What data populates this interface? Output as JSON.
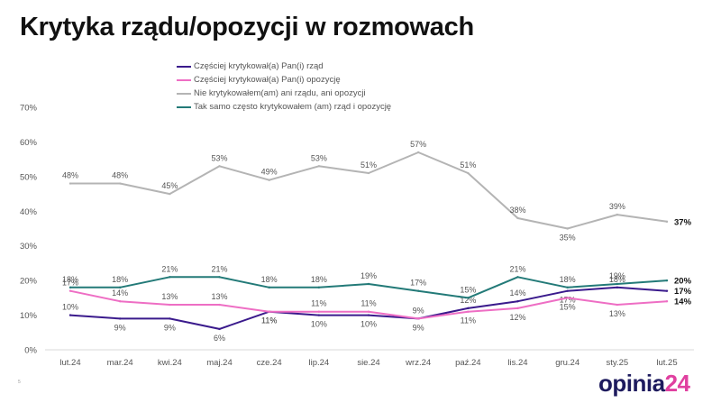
{
  "header": {
    "title": "Krytyka rządu/opozycji w rozmowach"
  },
  "footnote": "5",
  "logo": {
    "name": "opinia24",
    "part1": "opinia",
    "part2": "24",
    "color1": "#1e1b5e",
    "color2": "#e040a0"
  },
  "chart_data": {
    "type": "line",
    "categories": [
      "lut.24",
      "mar.24",
      "kwi.24",
      "maj.24",
      "cze.24",
      "lip.24",
      "sie.24",
      "wrz.24",
      "paź.24",
      "lis.24",
      "gru.24",
      "sty.25",
      "lut.25"
    ],
    "ylim": [
      0,
      70
    ],
    "yticks": [
      "0%",
      "10%",
      "20%",
      "30%",
      "40%",
      "50%",
      "60%",
      "70%"
    ],
    "grid": false,
    "legend_position": "top",
    "series": [
      {
        "name": "Częściej krytykował(a) Pan(i) rząd",
        "color": "#3a1a8c",
        "values": [
          10,
          9,
          9,
          6,
          11,
          10,
          10,
          9,
          12,
          14,
          17,
          18,
          17
        ],
        "labels": [
          "10%",
          "9%",
          "9%",
          "6%",
          "11%",
          "10%",
          "10%",
          "9%",
          "12%",
          "14%",
          "17%",
          "18%",
          "17%"
        ]
      },
      {
        "name": "Częściej krytykował(a) Pan(i) opozycję",
        "color": "#ee6ec4",
        "values": [
          17,
          14,
          13,
          13,
          11,
          11,
          11,
          9,
          11,
          12,
          15,
          13,
          14
        ],
        "labels": [
          "17%",
          "14%",
          "13%",
          "13%",
          "11%",
          "11%",
          "11%",
          "9%",
          "11%",
          "12%",
          "15%",
          "13%",
          "14%"
        ]
      },
      {
        "name": "Nie krytykowałem(am) ani rządu, ani opozycji",
        "color": "#b4b4b4",
        "values": [
          48,
          48,
          45,
          53,
          49,
          53,
          51,
          57,
          51,
          38,
          35,
          39,
          37
        ],
        "labels": [
          "48%",
          "48%",
          "45%",
          "53%",
          "49%",
          "53%",
          "51%",
          "57%",
          "51%",
          "38%",
          "35%",
          "39%",
          "37%"
        ]
      },
      {
        "name": "Tak samo często krytykowałem (am) rząd i opozycję",
        "color": "#237a78",
        "values": [
          18,
          18,
          21,
          21,
          18,
          18,
          19,
          17,
          15,
          21,
          18,
          19,
          20
        ],
        "labels": [
          "18%",
          "18%",
          "21%",
          "21%",
          "18%",
          "18%",
          "19%",
          "17%",
          "15%",
          "21%",
          "18%",
          "19%",
          "20%"
        ]
      }
    ]
  }
}
